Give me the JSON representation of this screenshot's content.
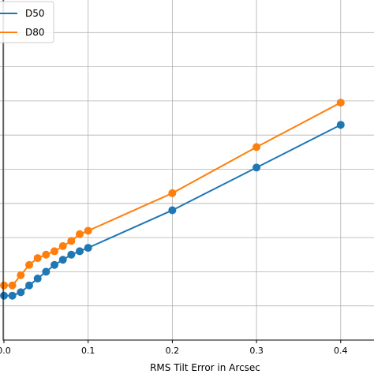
{
  "chart_data": {
    "type": "line",
    "xlabel": "RMS Tilt Error in Arcsec",
    "ylabel": "",
    "xlim": [
      0.0,
      0.45
    ],
    "ylim": [
      0.0,
      1.0
    ],
    "grid": true,
    "legend_position": "top-left",
    "x_ticks": [
      0.0,
      0.1,
      0.2,
      0.3,
      0.4
    ],
    "x_tick_labels": [
      "0.0",
      "0.1",
      "0.2",
      "0.3",
      "0.4"
    ],
    "series": [
      {
        "name": "D50",
        "color": "#1f77b4",
        "x": [
          0.0,
          0.01,
          0.02,
          0.03,
          0.04,
          0.05,
          0.06,
          0.07,
          0.08,
          0.09,
          0.1,
          0.2,
          0.3,
          0.4
        ],
        "y": [
          0.13,
          0.13,
          0.14,
          0.16,
          0.18,
          0.2,
          0.22,
          0.235,
          0.25,
          0.26,
          0.27,
          0.38,
          0.505,
          0.63
        ]
      },
      {
        "name": "D80",
        "color": "#ff7f0e",
        "x": [
          0.0,
          0.01,
          0.02,
          0.03,
          0.04,
          0.05,
          0.06,
          0.07,
          0.08,
          0.09,
          0.1,
          0.2,
          0.3,
          0.4
        ],
        "y": [
          0.16,
          0.16,
          0.19,
          0.22,
          0.24,
          0.25,
          0.26,
          0.275,
          0.29,
          0.31,
          0.32,
          0.43,
          0.565,
          0.695
        ]
      }
    ]
  }
}
